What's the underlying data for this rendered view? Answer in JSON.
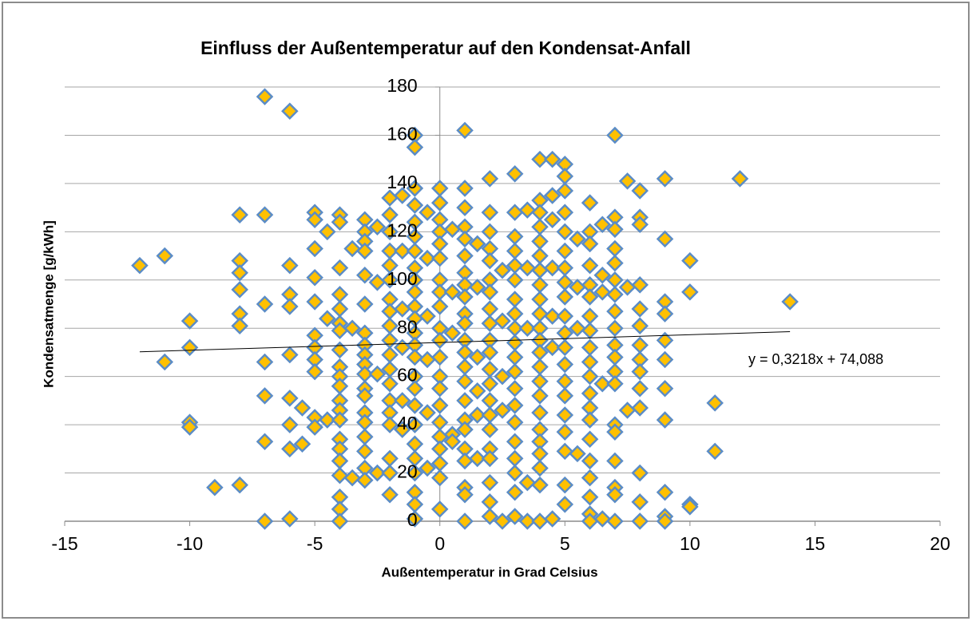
{
  "chart_data": {
    "type": "scatter",
    "title": "Einfluss der Außentemperatur auf den Kondensat-Anfall",
    "x_label": "Außentemperatur in Grad Celsius",
    "y_label": "Kondensatmenge [g/kWh]",
    "xlim": [
      -15,
      20
    ],
    "xticks": [
      -15,
      -10,
      -5,
      0,
      5,
      10,
      15,
      20
    ],
    "ylim": [
      0,
      180
    ],
    "yticks": [
      0,
      20,
      40,
      60,
      80,
      100,
      120,
      140,
      160,
      180
    ],
    "grid": true,
    "color": "#ffc000",
    "edge_color": "#5b8cc6",
    "trendline": {
      "slope": 0.3218,
      "intercept": 74.088,
      "x_range": [
        -12,
        14
      ],
      "color": "#000000",
      "label": "y = 0,3218x + 74,088"
    },
    "x": [
      -12,
      -11,
      -11,
      -10,
      -10,
      -10,
      -10,
      -9,
      -8,
      -8,
      -8,
      -8,
      -8,
      -8,
      -8,
      -7,
      -7,
      -7,
      -7,
      -7,
      -7,
      -7,
      -6,
      -6,
      -6,
      -6,
      -6,
      -6,
      -6,
      -6,
      -6,
      -5.5,
      -5.5,
      -5,
      -5,
      -5,
      -5,
      -5,
      -5,
      -5,
      -5,
      -5,
      -5,
      -5,
      -4.5,
      -4.5,
      -4.5,
      -4,
      -4,
      -4,
      -4,
      -4,
      -4,
      -4,
      -4,
      -4,
      -4,
      -4,
      -4,
      -4,
      -4,
      -4,
      -4,
      -4,
      -4,
      -4,
      -4,
      -4,
      -3.5,
      -3.5,
      -3.5,
      -3,
      -3,
      -3,
      -3,
      -3,
      -3,
      -3,
      -3,
      -3,
      -3,
      -3,
      -3,
      -3,
      -3,
      -3,
      -3,
      -3,
      -3,
      -3,
      -2.5,
      -2.5,
      -2.5,
      -2.5,
      -2,
      -2,
      -2,
      -2,
      -2,
      -2,
      -2,
      -2,
      -2,
      -2,
      -2,
      -2,
      -2,
      -2,
      -2,
      -2,
      -2,
      -2,
      -2,
      -1.5,
      -1.5,
      -1.5,
      -1.5,
      -1.5,
      -1.5,
      -1,
      -1,
      -1,
      -1,
      -1,
      -1,
      -1,
      -1,
      -1,
      -1,
      -1,
      -1,
      -1,
      -1,
      -1,
      -1,
      -1,
      -1,
      -1,
      -1,
      -1,
      -1,
      -1,
      -1,
      -1,
      -0.5,
      -0.5,
      -0.5,
      -0.5,
      -0.5,
      -0.5,
      0,
      0,
      0,
      0,
      0,
      0,
      0,
      0,
      0,
      0,
      0,
      0,
      0,
      0,
      0,
      0,
      0,
      0,
      0,
      0,
      0,
      0.5,
      0.5,
      0.5,
      0.5,
      0.5,
      1,
      1,
      1,
      1,
      1,
      1,
      1,
      1,
      1,
      1,
      1,
      1,
      1,
      1,
      1,
      1,
      1,
      1,
      1,
      1,
      1,
      1,
      1,
      1.5,
      1.5,
      1.5,
      1.5,
      1.5,
      1.5,
      2,
      2,
      2,
      2,
      2,
      2,
      2,
      2,
      2,
      2,
      2,
      2,
      2,
      2,
      2,
      2,
      2,
      2,
      2,
      2,
      2,
      2.5,
      2.5,
      2.5,
      2.5,
      2.5,
      3,
      3,
      3,
      3,
      3,
      3,
      3,
      3,
      3,
      3,
      3,
      3,
      3,
      3,
      3,
      3,
      3,
      3,
      3,
      3,
      3.5,
      3.5,
      3.5,
      3.5,
      3.5,
      4,
      4,
      4,
      4,
      4,
      4,
      4,
      4,
      4,
      4,
      4,
      4,
      4,
      4,
      4,
      4,
      4,
      4,
      4,
      4,
      4,
      4,
      4,
      4.5,
      4.5,
      4.5,
      4.5,
      4.5,
      4.5,
      4.5,
      5,
      5,
      5,
      5,
      5,
      5,
      5,
      5,
      5,
      5,
      5,
      5,
      5,
      5,
      5,
      5,
      5,
      5,
      5,
      5,
      5.5,
      5.5,
      5.5,
      5.5,
      6,
      6,
      6,
      6,
      6,
      6,
      6,
      6,
      6,
      6,
      6,
      6,
      6,
      6,
      6,
      6,
      6,
      6,
      6,
      6,
      6.5,
      6.5,
      6.5,
      6.5,
      6.5,
      7,
      7,
      7,
      7,
      7,
      7,
      7,
      7,
      7,
      7,
      7,
      7,
      7,
      7,
      7,
      7,
      7,
      7,
      7,
      7.5,
      7.5,
      7.5,
      8,
      8,
      8,
      8,
      8,
      8,
      8,
      8,
      8,
      8,
      8,
      8,
      8,
      8,
      9,
      9,
      9,
      9,
      9,
      9,
      9,
      9,
      9,
      9,
      9,
      10,
      10,
      10,
      10,
      11,
      11,
      12,
      14
    ],
    "values": [
      106,
      110,
      66,
      83,
      72,
      41,
      39,
      14,
      127,
      108,
      103,
      96,
      86,
      81,
      15,
      176,
      127,
      90,
      66,
      52,
      33,
      0,
      170,
      106,
      94,
      89,
      69,
      51,
      40,
      30,
      1,
      47,
      32,
      128,
      125,
      113,
      101,
      91,
      77,
      72,
      67,
      62,
      43,
      39,
      120,
      84,
      42,
      127,
      124,
      105,
      94,
      88,
      82,
      79,
      71,
      64,
      60,
      56,
      50,
      46,
      42,
      34,
      30,
      25,
      19,
      10,
      5,
      0,
      113,
      80,
      18,
      125,
      120,
      116,
      112,
      102,
      90,
      78,
      73,
      69,
      65,
      61,
      55,
      52,
      45,
      41,
      35,
      29,
      22,
      17,
      122,
      99,
      61,
      20,
      134,
      127,
      120,
      112,
      106,
      100,
      92,
      87,
      81,
      75,
      69,
      63,
      57,
      50,
      45,
      40,
      26,
      20,
      11,
      135,
      112,
      88,
      72,
      50,
      38,
      160,
      155,
      138,
      131,
      124,
      118,
      112,
      105,
      100,
      95,
      89,
      84,
      78,
      73,
      68,
      60,
      55,
      48,
      40,
      32,
      26,
      20,
      12,
      7,
      1,
      128,
      109,
      85,
      67,
      45,
      22,
      138,
      132,
      125,
      120,
      115,
      109,
      100,
      95,
      89,
      80,
      75,
      68,
      60,
      55,
      48,
      41,
      35,
      30,
      24,
      18,
      5,
      121,
      95,
      78,
      36,
      33,
      162,
      138,
      130,
      122,
      117,
      110,
      103,
      98,
      93,
      86,
      82,
      75,
      70,
      64,
      58,
      50,
      42,
      38,
      30,
      25,
      14,
      11,
      0,
      115,
      97,
      68,
      54,
      44,
      26,
      142,
      128,
      120,
      113,
      108,
      100,
      95,
      88,
      82,
      75,
      70,
      63,
      57,
      50,
      44,
      38,
      30,
      26,
      16,
      8,
      2,
      104,
      83,
      60,
      46,
      0,
      144,
      128,
      118,
      112,
      106,
      100,
      92,
      86,
      80,
      74,
      68,
      62,
      55,
      48,
      41,
      33,
      26,
      20,
      12,
      2,
      129,
      105,
      80,
      16,
      0,
      150,
      133,
      128,
      122,
      116,
      110,
      104,
      98,
      92,
      86,
      80,
      75,
      70,
      64,
      58,
      52,
      45,
      38,
      33,
      28,
      22,
      15,
      0,
      150,
      135,
      125,
      105,
      85,
      72,
      1,
      148,
      143,
      137,
      128,
      120,
      112,
      105,
      99,
      93,
      85,
      78,
      72,
      65,
      58,
      52,
      44,
      37,
      29,
      15,
      7,
      117,
      97,
      80,
      28,
      132,
      120,
      115,
      106,
      98,
      93,
      85,
      79,
      72,
      66,
      60,
      53,
      47,
      42,
      34,
      25,
      18,
      10,
      3,
      0,
      123,
      102,
      95,
      57,
      1,
      160,
      126,
      121,
      113,
      107,
      100,
      94,
      87,
      80,
      73,
      68,
      62,
      57,
      40,
      37,
      25,
      14,
      11,
      0,
      141,
      97,
      46,
      137,
      126,
      123,
      98,
      88,
      81,
      73,
      67,
      62,
      55,
      47,
      20,
      8,
      0,
      142,
      117,
      91,
      86,
      75,
      67,
      55,
      42,
      12,
      2,
      0,
      108,
      95,
      7,
      6,
      49,
      29,
      142,
      91
    ]
  }
}
